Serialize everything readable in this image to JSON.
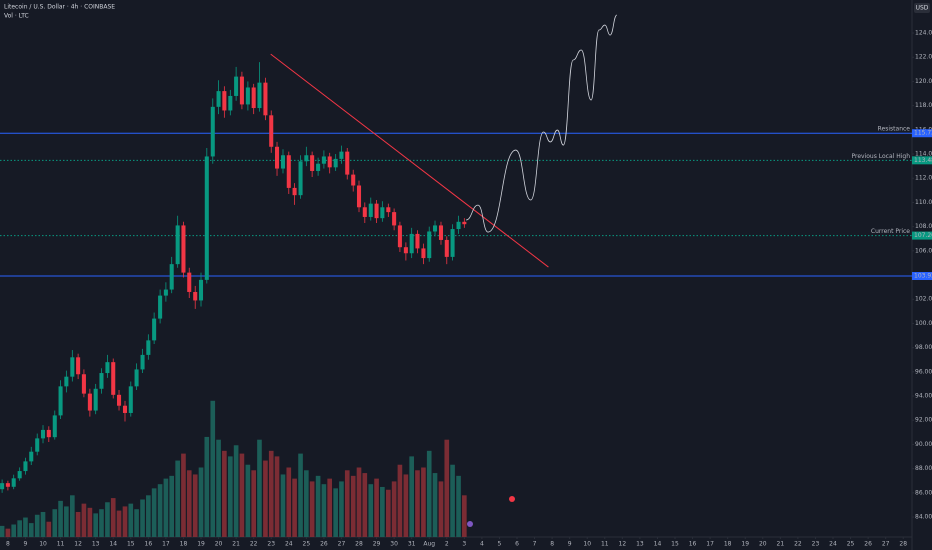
{
  "chart_data": {
    "type": "candlestick",
    "title": "Litecoin / U.S. Dollar · 4h · COINBASE",
    "subtitle": "Vol · LTC",
    "currency": "USD",
    "up_color": "#089981",
    "down_color": "#f23645",
    "volume_up_color": "#1c5e58",
    "volume_down_color": "#7b2c34",
    "x": [
      7.67,
      8,
      8.33,
      8.67,
      9,
      9.33,
      9.67,
      10,
      10.33,
      10.67,
      11,
      11.33,
      11.67,
      12,
      12.33,
      12.67,
      13,
      13.33,
      13.67,
      14,
      14.33,
      14.67,
      15,
      15.33,
      15.67,
      16,
      16.33,
      16.67,
      17,
      17.33,
      17.67,
      18,
      18.33,
      18.67,
      19,
      19.33,
      19.67,
      20,
      20.33,
      20.67,
      21,
      21.33,
      21.67,
      22,
      22.33,
      22.67,
      23,
      23.33,
      23.67,
      24,
      24.33,
      24.67,
      25,
      25.33,
      25.67,
      26,
      26.33,
      26.67,
      27,
      27.33,
      27.67,
      28,
      28.33,
      28.67,
      29,
      29.33,
      29.67,
      30,
      30.33,
      30.67,
      31,
      31.33,
      31.67,
      32,
      32.33,
      32.67,
      33,
      33.33,
      33.67,
      34
    ],
    "ohlc": [
      [
        86.3,
        87.1,
        86.0,
        86.8
      ],
      [
        86.8,
        87.0,
        86.2,
        86.5
      ],
      [
        86.5,
        87.5,
        86.3,
        87.2
      ],
      [
        87.2,
        88.1,
        87.0,
        87.8
      ],
      [
        87.8,
        88.9,
        87.5,
        88.6
      ],
      [
        88.6,
        89.8,
        88.3,
        89.4
      ],
      [
        89.4,
        90.9,
        89.1,
        90.5
      ],
      [
        90.5,
        91.6,
        90.1,
        91.2
      ],
      [
        91.2,
        91.5,
        90.2,
        90.6
      ],
      [
        90.6,
        92.8,
        90.4,
        92.4
      ],
      [
        92.4,
        95.3,
        92.1,
        94.8
      ],
      [
        94.8,
        96.1,
        94.3,
        95.6
      ],
      [
        95.6,
        97.8,
        95.2,
        97.2
      ],
      [
        97.2,
        97.5,
        95.4,
        95.8
      ],
      [
        95.8,
        96.2,
        93.9,
        94.2
      ],
      [
        94.2,
        94.6,
        92.3,
        92.8
      ],
      [
        92.8,
        95.0,
        92.5,
        94.6
      ],
      [
        94.6,
        96.3,
        94.2,
        95.9
      ],
      [
        95.9,
        97.4,
        95.5,
        96.8
      ],
      [
        96.8,
        97.1,
        93.8,
        94.1
      ],
      [
        94.1,
        94.5,
        92.8,
        93.2
      ],
      [
        93.2,
        93.6,
        91.9,
        92.6
      ],
      [
        92.6,
        95.2,
        92.3,
        94.8
      ],
      [
        94.8,
        96.7,
        94.5,
        96.2
      ],
      [
        96.2,
        97.9,
        95.9,
        97.4
      ],
      [
        97.4,
        99.1,
        97.0,
        98.6
      ],
      [
        98.6,
        100.9,
        98.3,
        100.4
      ],
      [
        100.4,
        102.8,
        100.0,
        102.3
      ],
      [
        102.3,
        103.4,
        101.8,
        102.8
      ],
      [
        102.8,
        105.5,
        102.5,
        104.9
      ],
      [
        104.9,
        108.9,
        104.6,
        108.1
      ],
      [
        108.1,
        108.4,
        103.8,
        104.2
      ],
      [
        104.2,
        104.6,
        102.1,
        102.6
      ],
      [
        102.6,
        103.1,
        101.2,
        101.9
      ],
      [
        101.9,
        104.2,
        101.4,
        103.6
      ],
      [
        103.6,
        114.5,
        103.3,
        113.8
      ],
      [
        113.8,
        118.6,
        113.2,
        117.9
      ],
      [
        117.9,
        120.1,
        117.3,
        119.2
      ],
      [
        119.2,
        119.6,
        117.0,
        117.6
      ],
      [
        117.6,
        119.3,
        117.2,
        118.8
      ],
      [
        118.8,
        121.2,
        118.4,
        120.4
      ],
      [
        120.4,
        120.8,
        117.7,
        118.1
      ],
      [
        118.1,
        120.0,
        117.6,
        119.5
      ],
      [
        119.5,
        119.8,
        117.3,
        117.8
      ],
      [
        117.8,
        121.6,
        117.5,
        119.9
      ],
      [
        119.9,
        120.3,
        116.8,
        117.2
      ],
      [
        117.2,
        117.6,
        114.1,
        114.6
      ],
      [
        114.6,
        115.0,
        112.2,
        112.8
      ],
      [
        112.8,
        114.4,
        112.4,
        113.9
      ],
      [
        113.9,
        114.2,
        110.7,
        111.2
      ],
      [
        111.2,
        111.6,
        109.8,
        110.6
      ],
      [
        110.6,
        113.9,
        110.3,
        113.4
      ],
      [
        113.4,
        114.6,
        113.0,
        113.9
      ],
      [
        113.9,
        114.2,
        112.1,
        112.6
      ],
      [
        112.6,
        113.7,
        112.2,
        113.2
      ],
      [
        113.2,
        114.3,
        112.8,
        113.8
      ],
      [
        113.8,
        114.1,
        112.4,
        112.9
      ],
      [
        112.9,
        114.0,
        112.6,
        113.6
      ],
      [
        113.6,
        114.7,
        113.2,
        114.2
      ],
      [
        114.2,
        114.5,
        111.9,
        112.3
      ],
      [
        112.3,
        112.7,
        110.9,
        111.4
      ],
      [
        111.4,
        111.8,
        109.2,
        109.6
      ],
      [
        109.6,
        110.0,
        108.3,
        108.8
      ],
      [
        108.8,
        110.4,
        108.5,
        109.9
      ],
      [
        109.9,
        110.2,
        108.3,
        108.7
      ],
      [
        108.7,
        110.1,
        108.4,
        109.6
      ],
      [
        109.6,
        109.9,
        108.8,
        109.2
      ],
      [
        109.2,
        109.5,
        107.7,
        108.1
      ],
      [
        108.1,
        108.4,
        105.9,
        106.3
      ],
      [
        106.3,
        106.7,
        105.2,
        105.8
      ],
      [
        105.8,
        107.9,
        105.4,
        107.4
      ],
      [
        107.4,
        107.7,
        105.8,
        106.2
      ],
      [
        106.2,
        106.6,
        104.9,
        105.4
      ],
      [
        105.4,
        108.0,
        105.1,
        107.6
      ],
      [
        107.6,
        108.5,
        107.2,
        108.1
      ],
      [
        108.1,
        108.4,
        106.5,
        106.9
      ],
      [
        106.9,
        107.2,
        104.9,
        105.5
      ],
      [
        105.5,
        108.2,
        105.2,
        107.8
      ],
      [
        107.8,
        108.9,
        107.4,
        108.4
      ],
      [
        108.4,
        108.7,
        107.9,
        108.2
      ]
    ],
    "volume": [
      8,
      6,
      9,
      12,
      14,
      10,
      16,
      18,
      11,
      20,
      26,
      22,
      30,
      18,
      24,
      21,
      17,
      20,
      25,
      28,
      19,
      22,
      24,
      20,
      27,
      30,
      35,
      38,
      42,
      44,
      55,
      60,
      48,
      45,
      50,
      72,
      98,
      70,
      62,
      58,
      66,
      60,
      52,
      48,
      70,
      55,
      62,
      58,
      45,
      50,
      42,
      60,
      48,
      40,
      44,
      38,
      42,
      35,
      40,
      48,
      44,
      50,
      46,
      38,
      42,
      36,
      34,
      40,
      52,
      45,
      58,
      48,
      50,
      62,
      46,
      40,
      70,
      52,
      44,
      30
    ],
    "volume_ylim": [
      0,
      100
    ],
    "levels": [
      {
        "name": "Resistance",
        "value": 115.72,
        "color": "#2962ff",
        "style": "solid"
      },
      {
        "name": "Previous Local High",
        "value": 113.48,
        "color": "#089981",
        "style": "dotted"
      },
      {
        "name": "Current Price",
        "value": 107.26,
        "color": "#089981",
        "style": "dotted"
      },
      {
        "value": 103.92,
        "color": "#2962ff",
        "style": "solid"
      }
    ],
    "trendline": {
      "color": "#f23645",
      "x": [
        22.97,
        38.79
      ],
      "y": [
        122.26,
        104.66
      ]
    },
    "projection": {
      "color": "#d1d4dc",
      "x": [
        34.1,
        34.78,
        35.35,
        36.93,
        37.78,
        38.51,
        38.9,
        39.3,
        39.64,
        40.2,
        40.66,
        41.22,
        41.67,
        42.01,
        42.3,
        42.69
      ],
      "y": [
        108.55,
        109.78,
        107.55,
        114.33,
        110.2,
        115.82,
        115.0,
        115.98,
        114.74,
        121.77,
        122.6,
        118.46,
        124.25,
        124.66,
        123.83,
        125.49
      ]
    },
    "xlim": [
      7.55,
      59.5
    ],
    "ylim": [
      82.35,
      126.73
    ],
    "yticks": [
      {
        "value": 124,
        "label": "124.00"
      },
      {
        "value": 122,
        "label": "122.00"
      },
      {
        "value": 120,
        "label": "120.00"
      },
      {
        "value": 118,
        "label": "118.00"
      },
      {
        "value": 116,
        "label": "116.00"
      },
      {
        "value": 114,
        "label": "114.00"
      },
      {
        "value": 112,
        "label": "112.00"
      },
      {
        "value": 110,
        "label": "110.00"
      },
      {
        "value": 108,
        "label": "108.00"
      },
      {
        "value": 106,
        "label": "106.00"
      },
      {
        "value": 104,
        "label": "104.00"
      },
      {
        "value": 102,
        "label": "102.00"
      },
      {
        "value": 100,
        "label": "100.00"
      },
      {
        "value": 98,
        "label": "98.00"
      },
      {
        "value": 96,
        "label": "96.00"
      },
      {
        "value": 94,
        "label": "94.00"
      },
      {
        "value": 92,
        "label": "92.00"
      },
      {
        "value": 90,
        "label": "90.00"
      },
      {
        "value": 88,
        "label": "88.00"
      },
      {
        "value": 86,
        "label": "86.00"
      },
      {
        "value": 84,
        "label": "84.00"
      }
    ],
    "xticks": [
      8,
      9,
      10,
      11,
      12,
      13,
      14,
      15,
      16,
      17,
      18,
      19,
      20,
      21,
      22,
      23,
      24,
      25,
      26,
      27,
      28,
      29,
      30,
      31,
      {
        "value": 32,
        "label": "Aug"
      },
      {
        "value": 33,
        "label": "2"
      },
      {
        "value": 34,
        "label": "3"
      },
      {
        "value": 35,
        "label": "4"
      },
      {
        "value": 36,
        "label": "5"
      },
      {
        "value": 37,
        "label": "6"
      },
      {
        "value": 38,
        "label": "7"
      },
      {
        "value": 39,
        "label": "8"
      },
      {
        "value": 40,
        "label": "9"
      },
      {
        "value": 41,
        "label": "10"
      },
      {
        "value": 42,
        "label": "11"
      },
      {
        "value": 43,
        "label": "12"
      },
      {
        "value": 44,
        "label": "13"
      },
      {
        "value": 45,
        "label": "14"
      },
      {
        "value": 46,
        "label": "15"
      },
      {
        "value": 47,
        "label": "16"
      },
      {
        "value": 48,
        "label": "17"
      },
      {
        "value": 49,
        "label": "18"
      },
      {
        "value": 50,
        "label": "19"
      },
      {
        "value": 51,
        "label": "20"
      },
      {
        "value": 52,
        "label": "21"
      },
      {
        "value": 53,
        "label": "22"
      },
      {
        "value": 54,
        "label": "23"
      },
      {
        "value": 55,
        "label": "24"
      },
      {
        "value": 56,
        "label": "25"
      },
      {
        "value": 57,
        "label": "26"
      },
      {
        "value": 58,
        "label": "27"
      },
      {
        "value": 59,
        "label": "28"
      }
    ]
  }
}
